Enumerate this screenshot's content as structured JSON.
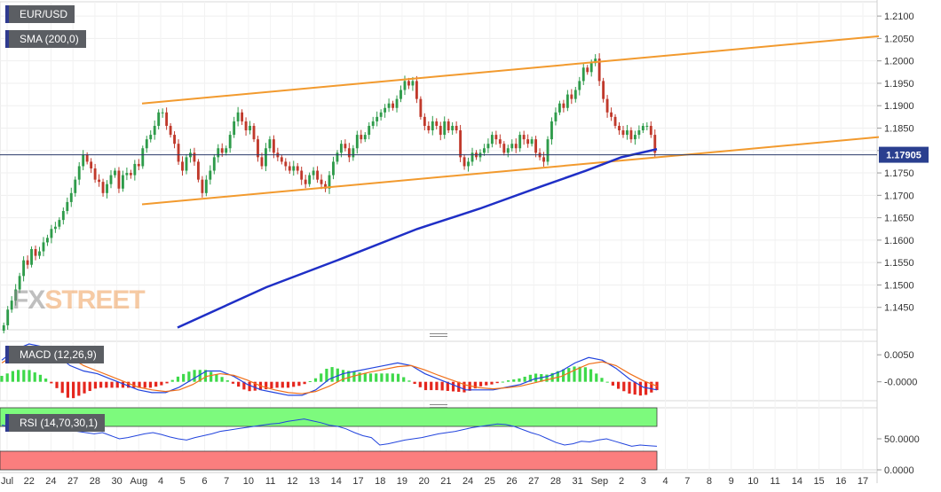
{
  "chart_data": {
    "type": "candlestick",
    "instrument": "EUR/USD",
    "price": {
      "ylim": [
        1.14,
        1.212
      ],
      "ticks": [
        "1.1450",
        "1.1500",
        "1.1550",
        "1.1600",
        "1.1650",
        "1.1700",
        "1.1750",
        "1.1800",
        "1.1850",
        "1.1900",
        "1.1950",
        "1.2000",
        "1.2050",
        "1.2100"
      ],
      "current": "1.17905",
      "current_value": 1.17905,
      "ohlc_close": [
        1.141,
        1.1445,
        1.1465,
        1.149,
        1.152,
        1.1555,
        1.1545,
        1.158,
        1.1565,
        1.1575,
        1.1595,
        1.1605,
        1.1625,
        1.163,
        1.1645,
        1.1665,
        1.1685,
        1.1705,
        1.1735,
        1.1765,
        1.179,
        1.1775,
        1.176,
        1.1735,
        1.173,
        1.1705,
        1.1725,
        1.1745,
        1.1755,
        1.1715,
        1.1745,
        1.175,
        1.1745,
        1.177,
        1.1765,
        1.1805,
        1.1825,
        1.1835,
        1.1855,
        1.1885,
        1.1885,
        1.1855,
        1.1835,
        1.1815,
        1.1775,
        1.1755,
        1.1785,
        1.1795,
        1.1775,
        1.1735,
        1.1705,
        1.1735,
        1.1755,
        1.1785,
        1.1805,
        1.1795,
        1.1805,
        1.1835,
        1.1865,
        1.1885,
        1.1865,
        1.1845,
        1.1855,
        1.1825,
        1.1785,
        1.1765,
        1.1805,
        1.1825,
        1.1795,
        1.1785,
        1.1775,
        1.1765,
        1.1755,
        1.1765,
        1.1755,
        1.1735,
        1.1725,
        1.1745,
        1.1755,
        1.1735,
        1.1725,
        1.1715,
        1.1745,
        1.1775,
        1.1795,
        1.1815,
        1.1805,
        1.1785,
        1.1805,
        1.1835,
        1.1825,
        1.1835,
        1.1855,
        1.1865,
        1.1875,
        1.1885,
        1.1895,
        1.1905,
        1.1895,
        1.1915,
        1.1935,
        1.1955,
        1.1945,
        1.1955,
        1.1915,
        1.1875,
        1.1855,
        1.1845,
        1.1865,
        1.1855,
        1.1835,
        1.1865,
        1.1845,
        1.1855,
        1.1845,
        1.1785,
        1.1765,
        1.1775,
        1.1795,
        1.1785,
        1.1795,
        1.1805,
        1.1815,
        1.1835,
        1.1825,
        1.1815,
        1.1795,
        1.1805,
        1.1815,
        1.1805,
        1.1835,
        1.1825,
        1.1815,
        1.1825,
        1.1795,
        1.1785,
        1.1775,
        1.1825,
        1.1865,
        1.1885,
        1.1905,
        1.1895,
        1.1925,
        1.1915,
        1.1935,
        1.1955,
        1.1985,
        1.1975,
        1.1995,
        1.2005,
        1.1955,
        1.1915,
        1.1885,
        1.1875,
        1.1855,
        1.1845,
        1.1835,
        1.1845,
        1.1825,
        1.1835,
        1.1845,
        1.1855,
        1.1855,
        1.1835,
        1.1795
      ],
      "sma_label": "SMA (200,0)",
      "sma": [
        [
          200,
          1.1405
        ],
        [
          300,
          1.1495
        ],
        [
          380,
          1.1555
        ],
        [
          470,
          1.1625
        ],
        [
          540,
          1.167
        ],
        [
          610,
          1.172
        ],
        [
          660,
          1.1755
        ],
        [
          700,
          1.1785
        ],
        [
          740,
          1.1803
        ]
      ],
      "channel_upper": [
        [
          160,
          1.1905
        ],
        [
          990,
          1.2055
        ]
      ],
      "channel_lower": [
        [
          160,
          1.168
        ],
        [
          990,
          1.183
        ]
      ]
    },
    "x_ticks": [
      "Jul",
      "22",
      "24",
      "27",
      "28",
      "30",
      "Aug",
      "4",
      "5",
      "6",
      "7",
      "10",
      "11",
      "12",
      "13",
      "14",
      "17",
      "18",
      "19",
      "20",
      "21",
      "24",
      "25",
      "26",
      "27",
      "28",
      "31",
      "Sep",
      "2",
      "3",
      "4",
      "7",
      "8",
      "9",
      "10",
      "11",
      "14",
      "15",
      "16",
      "17"
    ],
    "macd": {
      "label": "MACD (12,26,9)",
      "ticks": [
        "0.0050",
        "-0.0000"
      ],
      "ylim": [
        -0.0035,
        0.0075
      ],
      "line": [
        0.004,
        0.006,
        0.007,
        0.0065,
        0.005,
        0.003,
        0.002,
        0.0015,
        0.0005,
        -0.0005,
        -0.0015,
        -0.002,
        -0.002,
        -0.001,
        0.0005,
        0.002,
        0.002,
        0.001,
        -0.0005,
        -0.0015,
        -0.002,
        -0.0025,
        -0.0025,
        -0.0015,
        0.0005,
        0.0015,
        0.002,
        0.0025,
        0.003,
        0.0035,
        0.003,
        0.0015,
        0.0005,
        -0.0005,
        -0.0015,
        -0.0015,
        -0.0015,
        -0.001,
        -0.0005,
        0.0005,
        0.001,
        0.002,
        0.0035,
        0.0045,
        0.004,
        0.0025,
        0.0005,
        -0.001,
        -0.0015
      ],
      "signal": [
        0.0035,
        0.005,
        0.006,
        0.006,
        0.0055,
        0.0045,
        0.003,
        0.002,
        0.001,
        0.0,
        -0.001,
        -0.0015,
        -0.0018,
        -0.0015,
        -0.0005,
        0.001,
        0.0015,
        0.0012,
        0.0003,
        -0.0008,
        -0.0015,
        -0.002,
        -0.0022,
        -0.0018,
        -0.0008,
        0.0005,
        0.0012,
        0.0018,
        0.0023,
        0.0028,
        0.003,
        0.0022,
        0.0012,
        0.0003,
        -0.0006,
        -0.0011,
        -0.0013,
        -0.0011,
        -0.0008,
        -0.0002,
        0.0004,
        0.001,
        0.0022,
        0.0033,
        0.0037,
        0.003,
        0.0015,
        0.0002,
        -0.0008
      ]
    },
    "rsi": {
      "label": "RSI (14,70,30,1)",
      "ticks": [
        "50.0000",
        "0.0000"
      ],
      "ylim": [
        0,
        100
      ],
      "overbought": 70,
      "oversold": 30,
      "values": [
        72,
        70,
        73,
        74,
        72,
        68,
        66,
        69,
        65,
        62,
        60,
        58,
        60,
        55,
        50,
        52,
        55,
        58,
        60,
        57,
        53,
        50,
        48,
        52,
        55,
        58,
        62,
        64,
        66,
        68,
        70,
        72,
        74,
        75,
        78,
        80,
        82,
        79,
        76,
        72,
        70,
        66,
        60,
        55,
        52,
        40,
        42,
        45,
        48,
        50,
        52,
        55,
        58,
        60,
        62,
        65,
        68,
        70,
        72,
        74,
        73,
        70,
        65,
        60,
        56,
        50,
        44,
        40,
        42,
        46,
        45,
        48,
        50,
        46,
        42,
        38,
        40,
        39,
        38
      ]
    }
  }
}
